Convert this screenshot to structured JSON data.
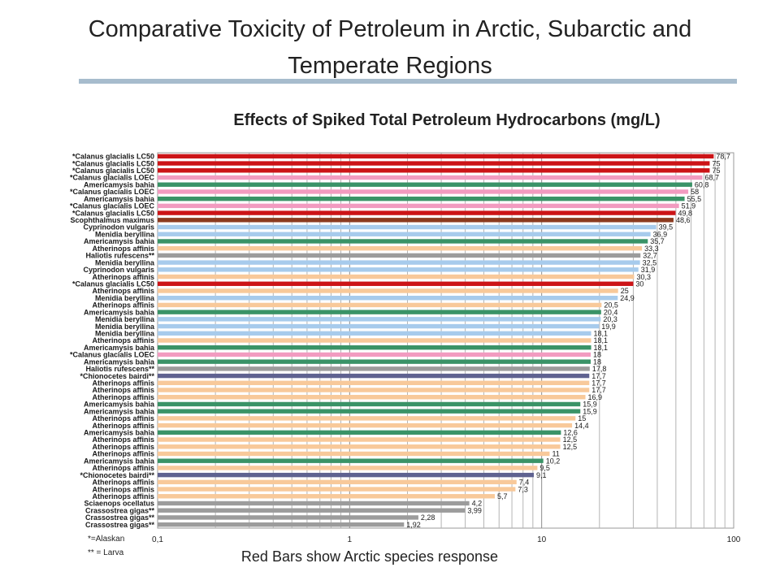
{
  "slide": {
    "title": "Comparative Toxicity of Petroleum in Arctic, Subarctic and Temperate Regions",
    "footnote_alaskan": "*=Alaskan",
    "footnote_larva": "** = Larva",
    "caption": "Red Bars show Arctic species response"
  },
  "colors": {
    "arctic": "#cc1417",
    "pink": "#f29bc0",
    "green": "#3a9367",
    "brown": "#8b3a1f",
    "blue": "#a7cbec",
    "peach": "#f8c99a",
    "gray": "#9c9c9c",
    "navy": "#5f6290"
  },
  "chart_data": {
    "type": "bar",
    "orientation": "horizontal",
    "title": "Effects of Spiked Total Petroleum Hydrocarbons (mg/L)",
    "x_scale": "log",
    "xlim": [
      0.1,
      100
    ],
    "x_ticks": [
      "0,1",
      "1",
      "10",
      "100"
    ],
    "grid": true,
    "bars": [
      {
        "label": "Calanus glacialis LC50",
        "prefix": "*",
        "suffix": "",
        "value": 78.7,
        "value_label": "78,7",
        "color": "arctic"
      },
      {
        "label": "Calanus glacialis LC50",
        "prefix": "*",
        "suffix": "",
        "value": 75,
        "value_label": "75",
        "color": "arctic"
      },
      {
        "label": "Calanus glacialis LC50",
        "prefix": "*",
        "suffix": "",
        "value": 75,
        "value_label": "75",
        "color": "arctic"
      },
      {
        "label": "Calanus glacialis LOEC",
        "prefix": "*",
        "suffix": "",
        "value": 68.7,
        "value_label": "68,7",
        "color": "pink"
      },
      {
        "label": "Americamysis bahia",
        "prefix": "",
        "suffix": "",
        "value": 60.8,
        "value_label": "60,8",
        "color": "green"
      },
      {
        "label": "Calanus glacialis LOEC",
        "prefix": "*",
        "suffix": "",
        "value": 58,
        "value_label": "58",
        "color": "pink"
      },
      {
        "label": "Americamysis bahia",
        "prefix": "",
        "suffix": "",
        "value": 55.5,
        "value_label": "55,5",
        "color": "green"
      },
      {
        "label": "Calanus glacialis LOEC",
        "prefix": "*",
        "suffix": "",
        "value": 51.9,
        "value_label": "51,9",
        "color": "pink"
      },
      {
        "label": "Calanus glacialis LC50",
        "prefix": "*",
        "suffix": "",
        "value": 49.8,
        "value_label": "49,8",
        "color": "arctic"
      },
      {
        "label": "Scophthalmus maximus",
        "prefix": "",
        "suffix": "",
        "value": 48.6,
        "value_label": "48,6",
        "color": "brown"
      },
      {
        "label": "Cyprinodon vulgaris",
        "prefix": "",
        "suffix": "",
        "value": 39.5,
        "value_label": "39,5",
        "color": "blue"
      },
      {
        "label": "Menidia beryllina",
        "prefix": "",
        "suffix": "",
        "value": 36.9,
        "value_label": "36,9",
        "color": "blue"
      },
      {
        "label": "Americamysis bahia",
        "prefix": "",
        "suffix": "",
        "value": 35.7,
        "value_label": "35,7",
        "color": "green"
      },
      {
        "label": "Atherinops affinis",
        "prefix": "",
        "suffix": "",
        "value": 33.3,
        "value_label": "33,3",
        "color": "peach"
      },
      {
        "label": "Haliotis rufescens",
        "prefix": "",
        "suffix": "**",
        "value": 32.7,
        "value_label": "32,7",
        "color": "gray"
      },
      {
        "label": "Menidia beryllina",
        "prefix": "",
        "suffix": "",
        "value": 32.5,
        "value_label": "32,5",
        "color": "blue"
      },
      {
        "label": "Cyprinodon vulgaris",
        "prefix": "",
        "suffix": "",
        "value": 31.9,
        "value_label": "31,9",
        "color": "blue"
      },
      {
        "label": "Atherinops affinis",
        "prefix": "",
        "suffix": "",
        "value": 30.3,
        "value_label": "30,3",
        "color": "peach"
      },
      {
        "label": "Calanus glacialis LC50",
        "prefix": "*",
        "suffix": "",
        "value": 30,
        "value_label": "30",
        "color": "arctic"
      },
      {
        "label": "Atherinops affinis",
        "prefix": "",
        "suffix": "",
        "value": 25,
        "value_label": "25",
        "color": "peach"
      },
      {
        "label": "Menidia beryllina",
        "prefix": "",
        "suffix": "",
        "value": 24.9,
        "value_label": "24,9",
        "color": "blue"
      },
      {
        "label": "Atherinops affinis",
        "prefix": "",
        "suffix": "",
        "value": 20.5,
        "value_label": "20,5",
        "color": "peach"
      },
      {
        "label": "Americamysis bahia",
        "prefix": "",
        "suffix": "",
        "value": 20.4,
        "value_label": "20,4",
        "color": "green"
      },
      {
        "label": "Menidia beryllina",
        "prefix": "",
        "suffix": "",
        "value": 20.3,
        "value_label": "20,3",
        "color": "blue"
      },
      {
        "label": "Menidia beryllina",
        "prefix": "",
        "suffix": "",
        "value": 19.9,
        "value_label": "19,9",
        "color": "blue"
      },
      {
        "label": "Menidia beryllina",
        "prefix": "",
        "suffix": "",
        "value": 18.1,
        "value_label": "18,1",
        "color": "blue"
      },
      {
        "label": "Atherinops affinis",
        "prefix": "",
        "suffix": "",
        "value": 18.1,
        "value_label": "18,1",
        "color": "peach"
      },
      {
        "label": "Americamysis bahia",
        "prefix": "",
        "suffix": "",
        "value": 18.1,
        "value_label": "18,1",
        "color": "green"
      },
      {
        "label": "Calanus glacialis LOEC",
        "prefix": "*",
        "suffix": "",
        "value": 18,
        "value_label": "18",
        "color": "pink"
      },
      {
        "label": "Americamysis bahia",
        "prefix": "",
        "suffix": "",
        "value": 18,
        "value_label": "18",
        "color": "green"
      },
      {
        "label": "Haliotis rufescens",
        "prefix": "",
        "suffix": "**",
        "value": 17.8,
        "value_label": "17,8",
        "color": "gray"
      },
      {
        "label": "Chionocetes bairdi",
        "prefix": "*",
        "suffix": "**",
        "value": 17.7,
        "value_label": "17,7",
        "color": "navy"
      },
      {
        "label": "Atherinops affinis",
        "prefix": "",
        "suffix": "",
        "value": 17.7,
        "value_label": "17,7",
        "color": "peach"
      },
      {
        "label": "Atherinops affinis",
        "prefix": "",
        "suffix": "",
        "value": 17.7,
        "value_label": "17,7",
        "color": "peach"
      },
      {
        "label": "Atherinops affinis",
        "prefix": "",
        "suffix": "",
        "value": 16.9,
        "value_label": "16,9",
        "color": "peach"
      },
      {
        "label": "Americamysis bahia",
        "prefix": "",
        "suffix": "",
        "value": 15.9,
        "value_label": "15,9",
        "color": "green"
      },
      {
        "label": "Americamysis bahia",
        "prefix": "",
        "suffix": "",
        "value": 15.9,
        "value_label": "15,9",
        "color": "green"
      },
      {
        "label": "Atherinops affinis",
        "prefix": "",
        "suffix": "",
        "value": 15,
        "value_label": "15",
        "color": "peach"
      },
      {
        "label": "Atherinops affinis",
        "prefix": "",
        "suffix": "",
        "value": 14.4,
        "value_label": "14,4",
        "color": "peach"
      },
      {
        "label": "Americamysis bahia",
        "prefix": "",
        "suffix": "",
        "value": 12.6,
        "value_label": "12,6",
        "color": "green"
      },
      {
        "label": "Atherinops affinis",
        "prefix": "",
        "suffix": "",
        "value": 12.5,
        "value_label": "12,5",
        "color": "peach"
      },
      {
        "label": "Atherinops affinis",
        "prefix": "",
        "suffix": "",
        "value": 12.5,
        "value_label": "12,5",
        "color": "peach"
      },
      {
        "label": "Atherinops affinis",
        "prefix": "",
        "suffix": "",
        "value": 11,
        "value_label": "11",
        "color": "peach"
      },
      {
        "label": "Americamysis bahia",
        "prefix": "",
        "suffix": "",
        "value": 10.2,
        "value_label": "10,2",
        "color": "green"
      },
      {
        "label": "Atherinops affinis",
        "prefix": "",
        "suffix": "",
        "value": 9.5,
        "value_label": "9,5",
        "color": "peach"
      },
      {
        "label": "Chionocetes bairdi",
        "prefix": "*",
        "suffix": "**",
        "value": 9.1,
        "value_label": "9,1",
        "color": "navy"
      },
      {
        "label": "Atherinops affinis",
        "prefix": "",
        "suffix": "",
        "value": 7.4,
        "value_label": "7,4",
        "color": "peach"
      },
      {
        "label": "Atherinops affinis",
        "prefix": "",
        "suffix": "",
        "value": 7.3,
        "value_label": "7,3",
        "color": "peach"
      },
      {
        "label": "Atherinops affinis",
        "prefix": "",
        "suffix": "",
        "value": 5.7,
        "value_label": "5,7",
        "color": "peach"
      },
      {
        "label": "Sciaenops ocellatus",
        "prefix": "",
        "suffix": "",
        "value": 4.2,
        "value_label": "4,2",
        "color": "gray"
      },
      {
        "label": "Crassostrea gigas",
        "prefix": "",
        "suffix": "**",
        "value": 3.99,
        "value_label": "3,99",
        "color": "gray"
      },
      {
        "label": "Crassostrea gigas",
        "prefix": "",
        "suffix": "**",
        "value": 2.28,
        "value_label": "2,28",
        "color": "gray"
      },
      {
        "label": "Crassostrea gigas",
        "prefix": "",
        "suffix": "**",
        "value": 1.92,
        "value_label": "1,92",
        "color": "gray"
      }
    ]
  }
}
